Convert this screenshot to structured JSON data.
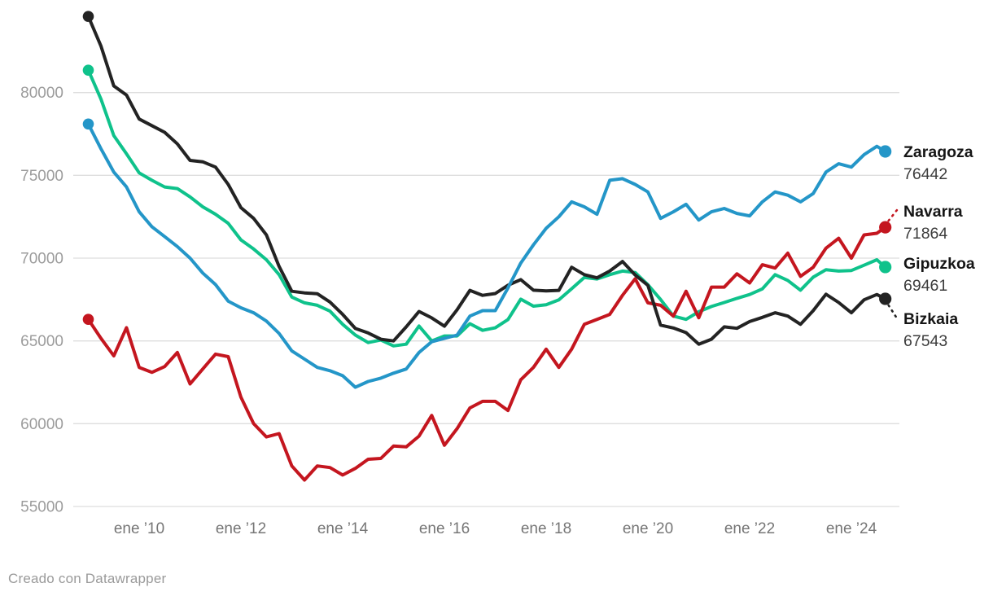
{
  "footer": {
    "text": "Creado con Datawrapper"
  },
  "chart_data": {
    "type": "line",
    "title": "",
    "xlabel": "",
    "ylabel": "",
    "grid": "horizontal",
    "legend_position": "right-end-labels",
    "ylim": [
      55000,
      85000
    ],
    "y_ticks": [
      55000,
      60000,
      65000,
      70000,
      75000,
      80000
    ],
    "x_ticks": [
      {
        "label": "ene ’10",
        "year": 2010
      },
      {
        "label": "ene ’12",
        "year": 2012
      },
      {
        "label": "ene ’14",
        "year": 2014
      },
      {
        "label": "ene ’16",
        "year": 2016
      },
      {
        "label": "ene ’18",
        "year": 2018
      },
      {
        "label": "ene ’20",
        "year": 2020
      },
      {
        "label": "ene ’22",
        "year": 2022
      },
      {
        "label": "ene ’24",
        "year": 2024
      }
    ],
    "x": [
      "2009-01",
      "2009-04",
      "2009-07",
      "2009-10",
      "2010-01",
      "2010-04",
      "2010-07",
      "2010-10",
      "2011-01",
      "2011-04",
      "2011-07",
      "2011-10",
      "2012-01",
      "2012-04",
      "2012-07",
      "2012-10",
      "2013-01",
      "2013-04",
      "2013-07",
      "2013-10",
      "2014-01",
      "2014-04",
      "2014-07",
      "2014-10",
      "2015-01",
      "2015-04",
      "2015-07",
      "2015-10",
      "2016-01",
      "2016-04",
      "2016-07",
      "2016-10",
      "2017-01",
      "2017-04",
      "2017-07",
      "2017-10",
      "2018-01",
      "2018-04",
      "2018-07",
      "2018-10",
      "2019-01",
      "2019-04",
      "2019-07",
      "2019-10",
      "2020-01",
      "2020-04",
      "2020-07",
      "2020-10",
      "2021-01",
      "2021-04",
      "2021-07",
      "2021-10",
      "2022-01",
      "2022-04",
      "2022-07",
      "2022-10",
      "2023-01",
      "2023-04",
      "2023-07",
      "2023-10",
      "2024-01",
      "2024-04",
      "2024-07",
      "2024-09"
    ],
    "series": [
      {
        "name": "Zaragoza",
        "color": "#2496c8",
        "end_value": 76442,
        "end_label": "76442",
        "label_dy": [
          7,
          34
        ],
        "leader": "none",
        "values": [
          78100,
          76600,
          75200,
          74300,
          72800,
          71900,
          71300,
          70700,
          70000,
          69100,
          68400,
          67400,
          67000,
          66700,
          66200,
          65450,
          64400,
          63900,
          63400,
          63200,
          62900,
          62200,
          62550,
          62750,
          63050,
          63300,
          64300,
          64950,
          65150,
          65350,
          66500,
          66830,
          66830,
          68200,
          69700,
          70800,
          71800,
          72500,
          73400,
          73100,
          72650,
          74700,
          74800,
          74450,
          74000,
          72400,
          72800,
          73250,
          72300,
          72800,
          73000,
          72700,
          72550,
          73400,
          74000,
          73800,
          73400,
          73900,
          75200,
          75700,
          75500,
          76250,
          76750,
          76442
        ]
      },
      {
        "name": "Navarra",
        "color": "#c4161f",
        "end_value": 71864,
        "end_label": "71864",
        "label_dy": [
          -13,
          14
        ],
        "leader": "up",
        "values": [
          66300,
          65150,
          64100,
          65800,
          63400,
          63100,
          63450,
          64300,
          62400,
          63300,
          64200,
          64050,
          61600,
          60000,
          59200,
          59400,
          57450,
          56600,
          57450,
          57350,
          56900,
          57300,
          57850,
          57900,
          58650,
          58600,
          59250,
          60500,
          58700,
          59700,
          60950,
          61350,
          61350,
          60800,
          62650,
          63400,
          64500,
          63400,
          64500,
          66000,
          66300,
          66600,
          67750,
          68750,
          67300,
          67150,
          66500,
          68000,
          66400,
          68250,
          68250,
          69050,
          68500,
          69600,
          69400,
          70300,
          68900,
          69450,
          70600,
          71200,
          70000,
          71400,
          71500,
          71864
        ]
      },
      {
        "name": "Gipuzkoa",
        "color": "#0fc28b",
        "end_value": 69461,
        "end_label": "69461",
        "label_dy": [
          2,
          29
        ],
        "leader": "none",
        "values": [
          81350,
          79600,
          77400,
          76300,
          75150,
          74700,
          74300,
          74200,
          73700,
          73100,
          72650,
          72100,
          71100,
          70550,
          69900,
          69000,
          67650,
          67300,
          67150,
          66800,
          66000,
          65350,
          64900,
          65050,
          64700,
          64800,
          65900,
          65000,
          65300,
          65300,
          66040,
          65640,
          65790,
          66290,
          67520,
          67100,
          67180,
          67480,
          68150,
          68830,
          68740,
          69000,
          69220,
          69130,
          68390,
          67500,
          66500,
          66300,
          66760,
          67080,
          67320,
          67570,
          67800,
          68140,
          69000,
          68650,
          68060,
          68850,
          69300,
          69220,
          69250,
          69570,
          69900,
          69461
        ]
      },
      {
        "name": "Bizkaia",
        "color": "#232323",
        "end_value": 67543,
        "end_label": "67543",
        "label_dy": [
          31,
          58
        ],
        "leader": "down",
        "values": [
          84600,
          82800,
          80400,
          79850,
          78400,
          78000,
          77600,
          76900,
          75900,
          75820,
          75500,
          74450,
          73050,
          72400,
          71400,
          69500,
          68000,
          67900,
          67850,
          67350,
          66600,
          65750,
          65480,
          65100,
          65000,
          65850,
          66780,
          66390,
          65890,
          66880,
          68050,
          67750,
          67860,
          68360,
          68700,
          68060,
          68020,
          68050,
          69450,
          69000,
          68810,
          69220,
          69800,
          68980,
          68350,
          65950,
          65780,
          65500,
          64800,
          65100,
          65850,
          65760,
          66170,
          66420,
          66700,
          66500,
          66000,
          66830,
          67820,
          67320,
          66700,
          67480,
          67800,
          67543
        ]
      }
    ],
    "styles": {
      "grid_color": "#dedede",
      "y_tick_color": "#9c9c9c",
      "x_tick_color": "#767676",
      "series_name_color": "#161616",
      "series_value_color": "#3c3c3c"
    }
  }
}
